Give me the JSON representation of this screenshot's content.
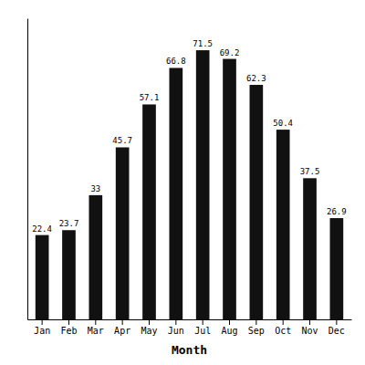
{
  "chart_data": {
    "type": "bar",
    "categories": [
      "Jan",
      "Feb",
      "Mar",
      "Apr",
      "May",
      "Jun",
      "Jul",
      "Aug",
      "Sep",
      "Oct",
      "Nov",
      "Dec"
    ],
    "values": [
      22.4,
      23.7,
      33.0,
      45.7,
      57.1,
      66.8,
      71.5,
      69.2,
      62.3,
      50.4,
      37.5,
      26.9
    ],
    "color": "#111111",
    "xlabel": "Month",
    "ylim": [
      0,
      80
    ],
    "data_labels": true,
    "tick_labels": "x"
  }
}
